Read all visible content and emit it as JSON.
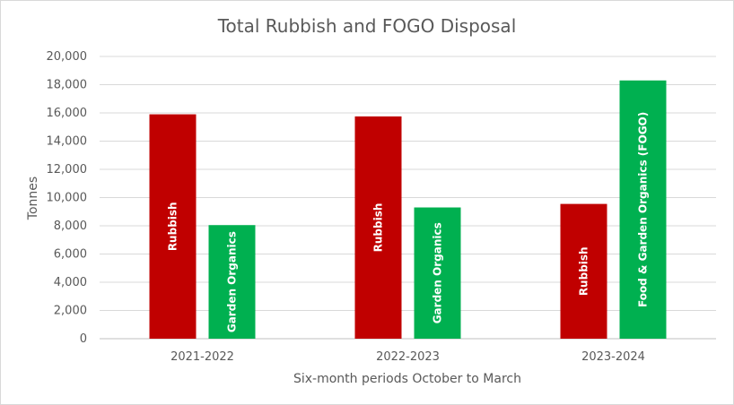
{
  "chart_data": {
    "type": "bar",
    "title": "Total Rubbish and FOGO Disposal",
    "xlabel": "Six-month periods October to March",
    "ylabel": "Tonnes",
    "ylim": [
      0,
      20000
    ],
    "yticks": [
      0,
      2000,
      4000,
      6000,
      8000,
      10000,
      12000,
      14000,
      16000,
      18000,
      20000
    ],
    "ytick_labels": [
      "0",
      "2,000",
      "4,000",
      "6,000",
      "8,000",
      "10,000",
      "12,000",
      "14,000",
      "16,000",
      "18,000",
      "20,000"
    ],
    "grid": true,
    "legend": "none",
    "categories": [
      "2021-2022",
      "2022-2023",
      "2023-2024"
    ],
    "groups": [
      {
        "category": "2021-2022",
        "bars": [
          {
            "label": "Rubbish",
            "value": 15900,
            "color": "#c00000"
          },
          {
            "label": "Garden Organics",
            "value": 8050,
            "color": "#00b050"
          }
        ]
      },
      {
        "category": "2022-2023",
        "bars": [
          {
            "label": "Rubbish",
            "value": 15750,
            "color": "#c00000"
          },
          {
            "label": "Garden Organics",
            "value": 9300,
            "color": "#00b050"
          }
        ]
      },
      {
        "category": "2023-2024",
        "bars": [
          {
            "label": "Rubbish",
            "value": 9550,
            "color": "#c00000"
          },
          {
            "label": "Food & Garden Organics (FOGO)",
            "value": 18300,
            "color": "#00b050"
          }
        ]
      }
    ]
  }
}
